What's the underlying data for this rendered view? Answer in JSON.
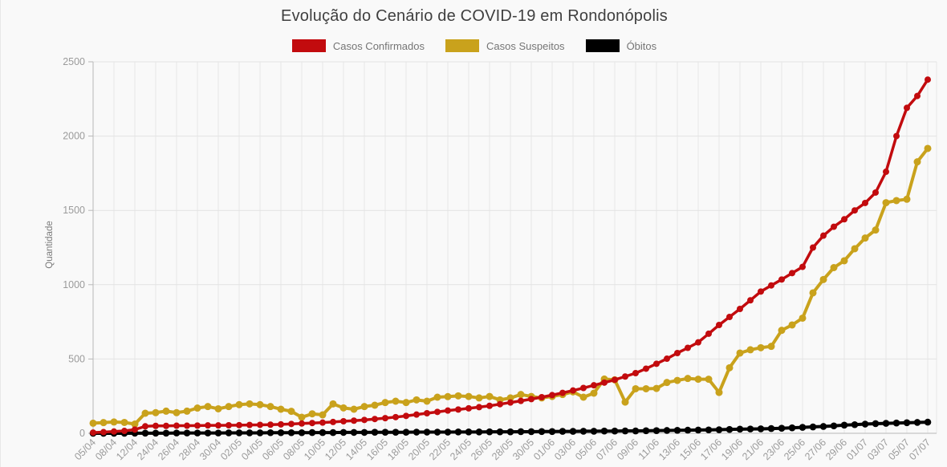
{
  "title": "Evolução do Cenário de COVID-19 em Rondonópolis",
  "legend": {
    "items": [
      {
        "label": "Casos Confirmados",
        "color": "#c20b0e"
      },
      {
        "label": "Casos Suspeitos",
        "color": "#c9a21c"
      },
      {
        "label": "Óbitos",
        "color": "#000000"
      }
    ]
  },
  "y_axis": {
    "label": "Quantidade"
  },
  "chart_data": {
    "type": "line",
    "title": "Evolução do Cenário de COVID-19 em Rondonópolis",
    "xlabel": "",
    "ylabel": "Quantidade",
    "ylim": [
      0,
      2500
    ],
    "y_ticks": [
      0,
      500,
      1000,
      1500,
      2000,
      2500
    ],
    "grid": true,
    "legend_position": "top",
    "markers": true,
    "label_every": 2,
    "x_tick_labels": [
      "05/04",
      "08/04",
      "12/04",
      "24/04",
      "26/04",
      "28/04",
      "30/04",
      "02/05",
      "04/05",
      "06/05",
      "08/05",
      "10/05",
      "12/05",
      "14/05",
      "16/05",
      "18/05",
      "20/05",
      "22/05",
      "24/05",
      "26/05",
      "28/05",
      "30/05",
      "01/06",
      "03/06",
      "05/06",
      "07/06",
      "09/06",
      "11/06",
      "13/06",
      "15/06",
      "17/06",
      "19/06",
      "21/06",
      "23/06",
      "25/06",
      "27/06",
      "29/06",
      "01/07",
      "03/07",
      "05/07",
      "07/07"
    ],
    "series": [
      {
        "name": "Casos Confirmados",
        "color": "#c20b0e",
        "values": [
          5,
          8,
          12,
          16,
          25,
          47,
          50,
          50,
          51,
          51,
          52,
          53,
          53,
          54,
          55,
          56,
          57,
          58,
          60,
          63,
          66,
          69,
          72,
          76,
          81,
          85,
          90,
          96,
          102,
          109,
          117,
          126,
          135,
          144,
          153,
          160,
          168,
          176,
          185,
          196,
          207,
          218,
          230,
          243,
          257,
          272,
          288,
          305,
          323,
          341,
          360,
          382,
          405,
          435,
          468,
          502,
          540,
          575,
          612,
          670,
          729,
          783,
          837,
          895,
          954,
          995,
          1035,
          1078,
          1120,
          1250,
          1330,
          1390,
          1440,
          1500,
          1550,
          1620,
          1760,
          2000,
          2190,
          2270,
          2380
        ]
      },
      {
        "name": "Casos Suspeitos",
        "color": "#c9a21c",
        "values": [
          68,
          72,
          76,
          73,
          62,
          135,
          139,
          149,
          139,
          149,
          170,
          180,
          165,
          180,
          193,
          198,
          193,
          180,
          162,
          148,
          108,
          131,
          124,
          198,
          171,
          162,
          180,
          189,
          207,
          216,
          207,
          225,
          216,
          243,
          247,
          252,
          248,
          238,
          248,
          225,
          238,
          261,
          248,
          238,
          248,
          261,
          279,
          243,
          270,
          365,
          360,
          210,
          300,
          300,
          302,
          342,
          356,
          369,
          364,
          364,
          275,
          441,
          540,
          562,
          576,
          585,
          693,
          729,
          775,
          945,
          1035,
          1115,
          1161,
          1242,
          1314,
          1368,
          1552,
          1566,
          1575,
          1827,
          1917
        ]
      },
      {
        "name": "Óbitos",
        "color": "#000000",
        "values": [
          0,
          0,
          0,
          0,
          1,
          1,
          1,
          1,
          2,
          2,
          2,
          2,
          2,
          3,
          3,
          3,
          3,
          4,
          4,
          4,
          4,
          5,
          5,
          5,
          6,
          6,
          6,
          7,
          7,
          7,
          7,
          8,
          8,
          8,
          8,
          9,
          9,
          9,
          10,
          10,
          10,
          11,
          11,
          12,
          12,
          13,
          13,
          14,
          14,
          15,
          15,
          16,
          16,
          17,
          18,
          19,
          20,
          21,
          22,
          23,
          24,
          26,
          28,
          29,
          30,
          32,
          34,
          37,
          40,
          43,
          46,
          50,
          55,
          58,
          62,
          65,
          67,
          69,
          71,
          73,
          75
        ]
      }
    ]
  }
}
